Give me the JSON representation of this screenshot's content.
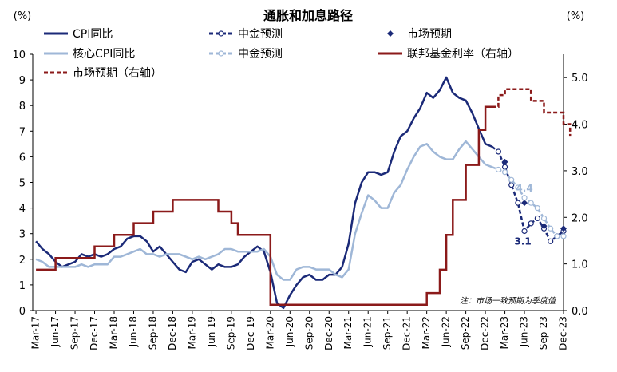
{
  "chart_data": {
    "type": "line",
    "title": "通胀和加息路径",
    "left_unit": "(%)",
    "right_unit": "(%)",
    "note": "注：市场一致预期为季度值",
    "x_tick_labels": [
      "Mar-17",
      "Jun-17",
      "Sep-17",
      "Dec-17",
      "Mar-18",
      "Jun-18",
      "Sep-18",
      "Dec-18",
      "Mar-19",
      "Jun-19",
      "Sep-19",
      "Dec-19",
      "Mar-20",
      "Jun-20",
      "Sep-20",
      "Dec-20",
      "Mar-21",
      "Jun-21",
      "Sep-21",
      "Dec-21",
      "Mar-22",
      "Jun-22",
      "Sep-22",
      "Dec-22",
      "Mar-23",
      "Jun-23",
      "Sep-23",
      "Dec-23"
    ],
    "left_axis": {
      "min": 0,
      "max": 10,
      "ticks": [
        "0",
        "1",
        "2",
        "3",
        "4",
        "5",
        "6",
        "7",
        "8",
        "9",
        "10"
      ]
    },
    "right_axis": {
      "min": 0,
      "max": 5.5,
      "ticks": [
        "0.0",
        "1.0",
        "2.0",
        "3.0",
        "4.0",
        "5.0"
      ]
    },
    "annotations": [
      {
        "text": "3.1",
        "series": "cpi_forecast",
        "x": "2023-06"
      },
      {
        "text": "4.4",
        "series": "core_forecast",
        "x": "2023-06"
      }
    ],
    "series": [
      {
        "key": "cpi",
        "name": "CPI同比",
        "axis": "left",
        "style": "solid",
        "color": "#1b2a78",
        "legend_slot": 0,
        "x": [
          "2017-03",
          "2017-04",
          "2017-05",
          "2017-06",
          "2017-07",
          "2017-08",
          "2017-09",
          "2017-10",
          "2017-11",
          "2017-12",
          "2018-01",
          "2018-02",
          "2018-03",
          "2018-04",
          "2018-05",
          "2018-06",
          "2018-07",
          "2018-08",
          "2018-09",
          "2018-10",
          "2018-11",
          "2018-12",
          "2019-01",
          "2019-02",
          "2019-03",
          "2019-04",
          "2019-05",
          "2019-06",
          "2019-07",
          "2019-08",
          "2019-09",
          "2019-10",
          "2019-11",
          "2019-12",
          "2020-01",
          "2020-02",
          "2020-03",
          "2020-04",
          "2020-05",
          "2020-06",
          "2020-07",
          "2020-08",
          "2020-09",
          "2020-10",
          "2020-11",
          "2020-12",
          "2021-01",
          "2021-02",
          "2021-03",
          "2021-04",
          "2021-05",
          "2021-06",
          "2021-07",
          "2021-08",
          "2021-09",
          "2021-10",
          "2021-11",
          "2021-12",
          "2022-01",
          "2022-02",
          "2022-03",
          "2022-04",
          "2022-05",
          "2022-06",
          "2022-07",
          "2022-08",
          "2022-09",
          "2022-10",
          "2022-11",
          "2022-12",
          "2023-01"
        ],
        "values": [
          2.7,
          2.4,
          2.2,
          1.9,
          1.7,
          1.8,
          1.9,
          2.2,
          2.1,
          2.2,
          2.1,
          2.2,
          2.4,
          2.5,
          2.8,
          2.9,
          2.9,
          2.7,
          2.3,
          2.5,
          2.2,
          1.9,
          1.6,
          1.5,
          1.9,
          2.0,
          1.8,
          1.6,
          1.8,
          1.7,
          1.7,
          1.8,
          2.1,
          2.3,
          2.5,
          2.3,
          1.5,
          0.3,
          0.1,
          0.6,
          1.0,
          1.3,
          1.4,
          1.2,
          1.2,
          1.4,
          1.4,
          1.7,
          2.6,
          4.2,
          5.0,
          5.4,
          5.4,
          5.3,
          5.4,
          6.2,
          6.8,
          7.0,
          7.5,
          7.9,
          8.5,
          8.3,
          8.6,
          9.1,
          8.5,
          8.3,
          8.2,
          7.7,
          7.1,
          6.5,
          6.4
        ]
      },
      {
        "key": "cpi_forecast",
        "name": "中金预测",
        "axis": "left",
        "style": "dashed-open-markers",
        "color": "#1b2a78",
        "legend_slot": 1,
        "x": [
          "2023-01",
          "2023-02",
          "2023-03",
          "2023-04",
          "2023-05",
          "2023-06",
          "2023-07",
          "2023-08",
          "2023-09",
          "2023-10",
          "2023-11",
          "2023-12"
        ],
        "values": [
          6.4,
          6.2,
          5.6,
          4.9,
          4.2,
          3.1,
          3.4,
          3.6,
          3.2,
          2.7,
          2.9,
          3.1
        ]
      },
      {
        "key": "cpi_market",
        "name": "市场预期",
        "axis": "left",
        "style": "diamond-markers",
        "color": "#1b2a78",
        "legend_slot": 2,
        "x": [
          "2023-03",
          "2023-06",
          "2023-09",
          "2023-12"
        ],
        "values": [
          5.8,
          4.2,
          3.3,
          3.2
        ]
      },
      {
        "key": "core",
        "name": "核心CPI同比",
        "axis": "left",
        "style": "solid",
        "color": "#9fb7d7",
        "legend_slot": 3,
        "x": [
          "2017-03",
          "2017-04",
          "2017-05",
          "2017-06",
          "2017-07",
          "2017-08",
          "2017-09",
          "2017-10",
          "2017-11",
          "2017-12",
          "2018-01",
          "2018-02",
          "2018-03",
          "2018-04",
          "2018-05",
          "2018-06",
          "2018-07",
          "2018-08",
          "2018-09",
          "2018-10",
          "2018-11",
          "2018-12",
          "2019-01",
          "2019-02",
          "2019-03",
          "2019-04",
          "2019-05",
          "2019-06",
          "2019-07",
          "2019-08",
          "2019-09",
          "2019-10",
          "2019-11",
          "2019-12",
          "2020-01",
          "2020-02",
          "2020-03",
          "2020-04",
          "2020-05",
          "2020-06",
          "2020-07",
          "2020-08",
          "2020-09",
          "2020-10",
          "2020-11",
          "2020-12",
          "2021-01",
          "2021-02",
          "2021-03",
          "2021-04",
          "2021-05",
          "2021-06",
          "2021-07",
          "2021-08",
          "2021-09",
          "2021-10",
          "2021-11",
          "2021-12",
          "2022-01",
          "2022-02",
          "2022-03",
          "2022-04",
          "2022-05",
          "2022-06",
          "2022-07",
          "2022-08",
          "2022-09",
          "2022-10",
          "2022-11",
          "2022-12",
          "2023-01"
        ],
        "values": [
          2.0,
          1.9,
          1.7,
          1.7,
          1.7,
          1.7,
          1.7,
          1.8,
          1.7,
          1.8,
          1.8,
          1.8,
          2.1,
          2.1,
          2.2,
          2.3,
          2.4,
          2.2,
          2.2,
          2.1,
          2.2,
          2.2,
          2.2,
          2.1,
          2.0,
          2.1,
          2.0,
          2.1,
          2.2,
          2.4,
          2.4,
          2.3,
          2.3,
          2.3,
          2.3,
          2.4,
          2.1,
          1.4,
          1.2,
          1.2,
          1.6,
          1.7,
          1.7,
          1.6,
          1.6,
          1.6,
          1.4,
          1.3,
          1.6,
          3.0,
          3.8,
          4.5,
          4.3,
          4.0,
          4.0,
          4.6,
          4.9,
          5.5,
          6.0,
          6.4,
          6.5,
          6.2,
          6.0,
          5.9,
          5.9,
          6.3,
          6.6,
          6.3,
          6.0,
          5.7,
          5.6
        ]
      },
      {
        "key": "core_forecast",
        "name": "中金预测",
        "axis": "left",
        "style": "dashed-open-markers",
        "color": "#9fb7d7",
        "legend_slot": 4,
        "x": [
          "2023-01",
          "2023-02",
          "2023-03",
          "2023-04",
          "2023-05",
          "2023-06",
          "2023-07",
          "2023-08",
          "2023-09",
          "2023-10",
          "2023-11",
          "2023-12"
        ],
        "values": [
          5.6,
          5.5,
          5.4,
          5.1,
          4.8,
          4.4,
          4.2,
          4.0,
          3.6,
          3.2,
          2.9,
          2.9
        ]
      },
      {
        "key": "fed",
        "name": "联邦基金利率（右轴）",
        "axis": "right",
        "style": "step",
        "color": "#8b1a1a",
        "legend_slot": 5,
        "x": [
          "2017-03",
          "2017-04",
          "2017-06",
          "2017-12",
          "2018-03",
          "2018-06",
          "2018-09",
          "2018-12",
          "2019-07",
          "2019-09",
          "2019-10",
          "2020-03",
          "2022-03",
          "2022-05",
          "2022-06",
          "2022-07",
          "2022-09",
          "2022-11",
          "2022-12",
          "2023-01"
        ],
        "values": [
          0.875,
          0.875,
          1.125,
          1.375,
          1.625,
          1.875,
          2.125,
          2.375,
          2.125,
          1.875,
          1.625,
          0.125,
          0.375,
          0.875,
          1.625,
          2.375,
          3.125,
          3.875,
          4.375,
          4.375
        ]
      },
      {
        "key": "fed_market",
        "name": "市场预期（右轴）",
        "axis": "right",
        "style": "dashed-step",
        "color": "#8b1a1a",
        "legend_slot": 6,
        "x": [
          "2023-01",
          "2023-02",
          "2023-03",
          "2023-05",
          "2023-06",
          "2023-07",
          "2023-09",
          "2023-10",
          "2023-12",
          "2024-01"
        ],
        "values": [
          4.375,
          4.625,
          4.75,
          4.75,
          4.75,
          4.5,
          4.25,
          4.25,
          4.0,
          3.75
        ]
      }
    ]
  }
}
